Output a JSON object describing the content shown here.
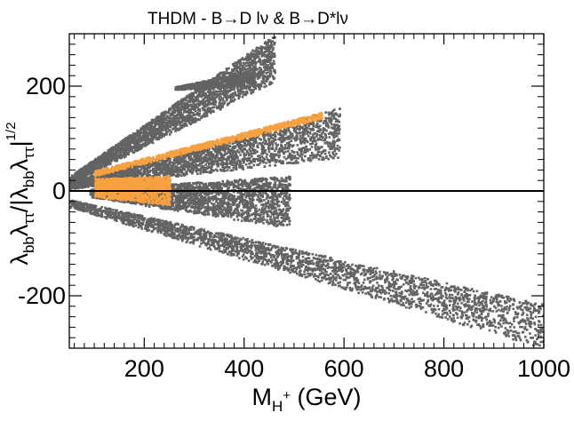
{
  "chart_data": {
    "type": "scatter",
    "title": "THDM - B→D lν & B→D*lν",
    "xlabel": {
      "main": "M",
      "sub": "H",
      "sup": "+",
      "unit": " (GeV)"
    },
    "ylabel": {
      "p1": "λ",
      "s1": "bb",
      "p2": "λ",
      "s2": "ττ",
      "p3": "/|λ",
      "s3": "bb",
      "p4": "λ",
      "s4": "ττ",
      "p5": "|",
      "sup": "1/2"
    },
    "xlim": [
      50,
      1000
    ],
    "ylim": [
      -300,
      300
    ],
    "xticks": [
      200,
      400,
      600,
      800,
      1000
    ],
    "xtick_labels": [
      "200",
      "400",
      "600",
      "800",
      "1000"
    ],
    "yticks": [
      -200,
      0,
      200
    ],
    "ytick_labels": [
      "-200",
      "0",
      "200"
    ],
    "colors": {
      "allowed": "#636363",
      "highlight": "#f7a140",
      "axis": "#000000"
    },
    "series": [
      {
        "name": "upper wedge (allowed)",
        "color": "#636363",
        "x_range": [
          50,
          460
        ],
        "upper": [
          [
            50,
            30
          ],
          [
            460,
            300
          ]
        ],
        "lower": [
          [
            50,
            15
          ],
          [
            460,
            210
          ]
        ]
      },
      {
        "name": "upper wedge tail patch",
        "color": "#636363",
        "x_range": [
          260,
          420
        ],
        "upper": [
          [
            260,
            200
          ],
          [
            420,
            232
          ]
        ],
        "lower": [
          [
            260,
            195
          ],
          [
            420,
            200
          ]
        ]
      },
      {
        "name": "middle wedge (allowed)",
        "color": "#636363",
        "x_range": [
          50,
          590
        ],
        "upper": [
          [
            50,
            20
          ],
          [
            590,
            160
          ]
        ],
        "lower": [
          [
            50,
            5
          ],
          [
            590,
            65
          ]
        ]
      },
      {
        "name": "middle wedge (best fit)",
        "color": "#f7a140",
        "x_range": [
          100,
          555
        ],
        "upper": [
          [
            100,
            40
          ],
          [
            555,
            152
          ]
        ],
        "lower": [
          [
            100,
            30
          ],
          [
            555,
            140
          ]
        ]
      },
      {
        "name": "near-zero cluster (allowed)",
        "color": "#636363",
        "x_range": [
          90,
          490
        ],
        "upper": [
          [
            90,
            5
          ],
          [
            490,
            30
          ]
        ],
        "lower": [
          [
            90,
            -10
          ],
          [
            490,
            -70
          ]
        ]
      },
      {
        "name": "near-zero cluster (best fit)",
        "color": "#f7a140",
        "x_range": [
          100,
          250
        ],
        "upper": [
          [
            100,
            25
          ],
          [
            250,
            30
          ]
        ],
        "lower": [
          [
            100,
            -10
          ],
          [
            250,
            -25
          ]
        ]
      },
      {
        "name": "lower wedge (allowed)",
        "color": "#636363",
        "x_range": [
          50,
          1000
        ],
        "upper": [
          [
            50,
            -15
          ],
          [
            1000,
            -215
          ]
        ],
        "lower": [
          [
            50,
            -30
          ],
          [
            1000,
            -300
          ]
        ]
      }
    ],
    "reference_line": {
      "y": 0,
      "style": "solid"
    }
  }
}
